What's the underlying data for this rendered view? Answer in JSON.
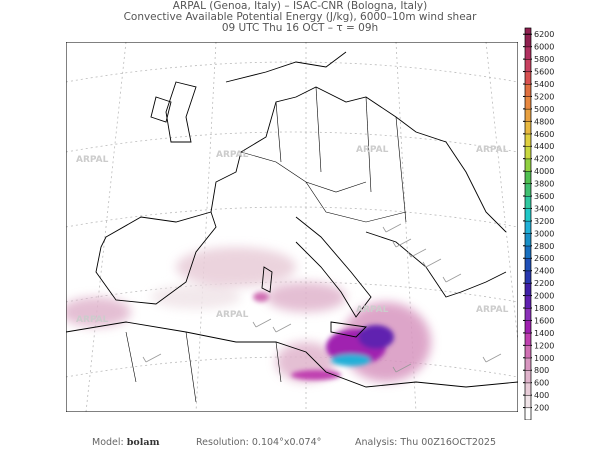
{
  "header": {
    "line1": "ARPAL (Genoa, Italy)  –  ISAC-CNR (Bologna, Italy)",
    "line2": "Convective Available Potential Energy (J/kg), 6000–10m wind shear",
    "line3": "09 UTC Thu 16 OCT  –  τ = 09h"
  },
  "watermark": "ARPAL",
  "colorbar": {
    "levels": [
      200,
      400,
      600,
      800,
      1000,
      1200,
      1400,
      1600,
      1800,
      2000,
      2200,
      2400,
      2600,
      2800,
      3000,
      3200,
      3400,
      3600,
      3800,
      4000,
      4200,
      4400,
      4600,
      4800,
      5000,
      5200,
      5400,
      5600,
      5800,
      6000,
      6200
    ],
    "colors": [
      "#ffffff",
      "#f0e4e8",
      "#e8ccd8",
      "#e0b4cc",
      "#d896c0",
      "#d070b4",
      "#c040b0",
      "#a020b0",
      "#8a30b8",
      "#6020b0",
      "#4020a8",
      "#2838b0",
      "#2050b8",
      "#1870c0",
      "#1890c8",
      "#20b0d8",
      "#20c8c8",
      "#30c8a0",
      "#40c070",
      "#50c050",
      "#90d040",
      "#c8d840",
      "#e0d040",
      "#e8b840",
      "#e8a040",
      "#e88840",
      "#e07040",
      "#d85050",
      "#c84060",
      "#b03060",
      "#902050"
    ]
  },
  "footer": {
    "model_label": "Model:",
    "model": "bolam",
    "resolution_label": "Resolution:",
    "resolution": "0.104°x0.074°",
    "analysis_label": "Analysis:",
    "analysis": "Thu 00Z16OCT2025"
  }
}
